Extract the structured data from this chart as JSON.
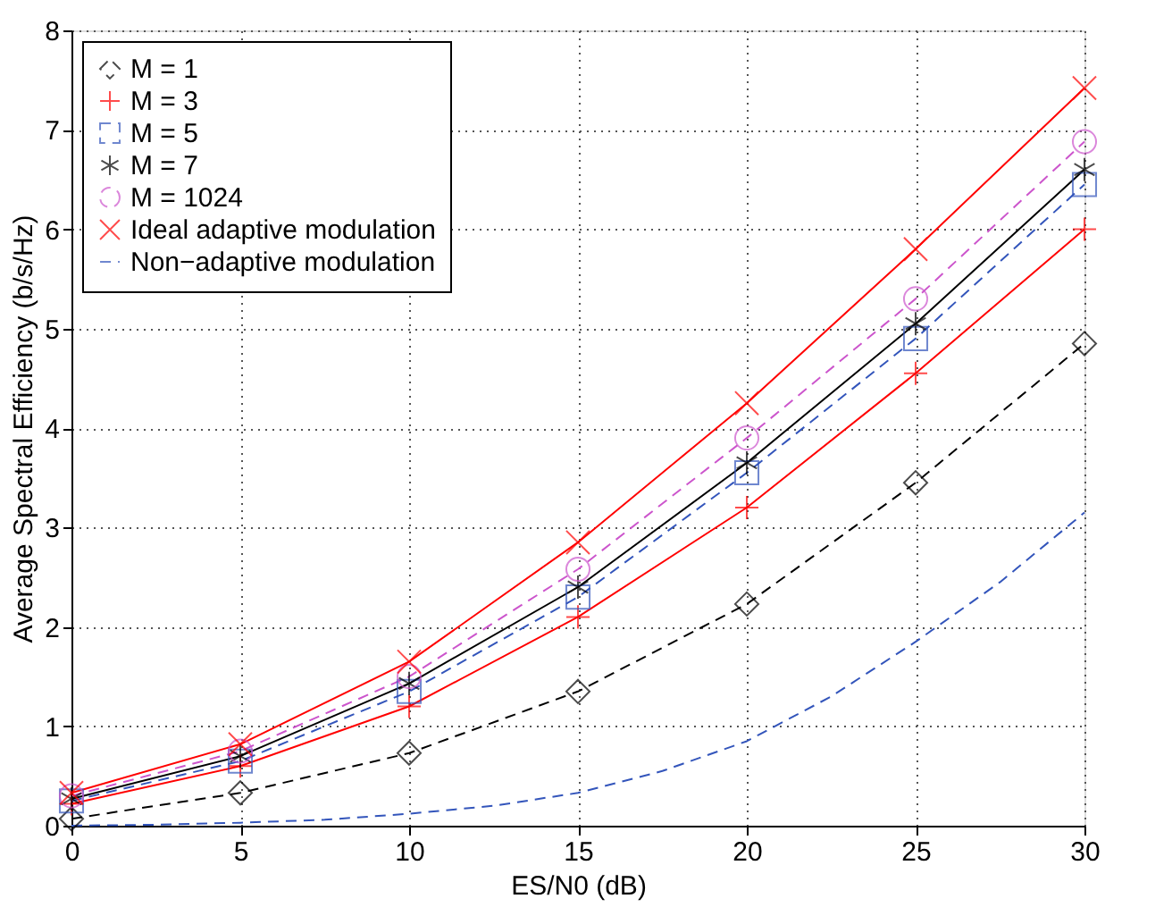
{
  "chart_data": {
    "type": "line",
    "xlabel": "ES/N0 (dB)",
    "ylabel": "Average Spectral Efficiency (b/s/Hz)",
    "xlim": [
      0,
      30
    ],
    "xticks": [
      0,
      5,
      10,
      15,
      20,
      25,
      30
    ],
    "ylim": [
      0,
      8
    ],
    "yticks": [
      0,
      1,
      2,
      3,
      4,
      5,
      6,
      7,
      8
    ],
    "grid": true,
    "legend": "top left",
    "series": [
      {
        "name": "M = 1",
        "color": "#000000",
        "marker": "diamond",
        "line_style": "dashed",
        "x": [
          0,
          5,
          10,
          15,
          20,
          25,
          30
        ],
        "values": [
          0.07,
          0.33,
          0.73,
          1.35,
          2.23,
          3.45,
          4.85
        ]
      },
      {
        "name": "M = 3",
        "color": "#ff0000",
        "marker": "plus",
        "line_style": "solid",
        "x": [
          0,
          5,
          10,
          15,
          20,
          25,
          30
        ],
        "values": [
          0.22,
          0.6,
          1.2,
          2.1,
          3.2,
          4.55,
          6.0
        ]
      },
      {
        "name": "M = 5",
        "color": "#3355bb",
        "marker": "square",
        "line_style": "dashed",
        "x": [
          0,
          5,
          10,
          15,
          20,
          25,
          30
        ],
        "values": [
          0.25,
          0.65,
          1.35,
          2.3,
          3.55,
          4.9,
          6.45
        ]
      },
      {
        "name": "M = 7",
        "color": "#000000",
        "marker": "cross",
        "line_style": "solid",
        "x": [
          0,
          5,
          10,
          15,
          20,
          25,
          30
        ],
        "values": [
          0.27,
          0.7,
          1.43,
          2.4,
          3.65,
          5.05,
          6.6
        ]
      },
      {
        "name": "M = 1024",
        "color": "#cc55cc",
        "marker": "circle",
        "line_style": "dashed",
        "x": [
          0,
          5,
          10,
          15,
          20,
          25,
          30
        ],
        "values": [
          0.3,
          0.75,
          1.5,
          2.58,
          3.9,
          5.3,
          6.88
        ]
      },
      {
        "name": "Ideal adaptive modulation",
        "color": "#ff0000",
        "marker": "x",
        "line_style": "solid",
        "x": [
          0,
          5,
          10,
          15,
          20,
          25,
          30
        ],
        "values": [
          0.33,
          0.82,
          1.65,
          2.85,
          4.25,
          5.8,
          7.42
        ]
      },
      {
        "name": "Non−adaptive modulation",
        "color": "#3355bb",
        "marker": "none",
        "line_style": "dashed",
        "x": [
          0,
          2.5,
          5,
          7.5,
          10,
          12.5,
          15,
          17.5,
          20,
          22.5,
          25,
          27.5,
          30
        ],
        "values": [
          0.0,
          0.01,
          0.03,
          0.06,
          0.12,
          0.2,
          0.33,
          0.55,
          0.85,
          1.3,
          1.85,
          2.45,
          3.15
        ]
      }
    ]
  }
}
